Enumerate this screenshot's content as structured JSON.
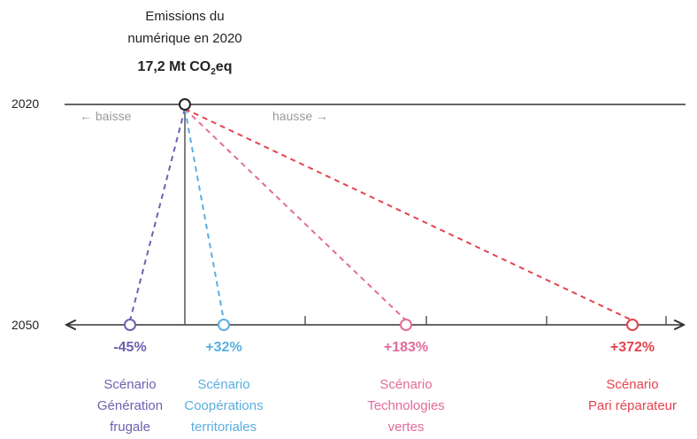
{
  "header": {
    "line1": "Emissions du",
    "line2": "numérique en 2020",
    "value_main": "17,2 Mt CO",
    "value_sub": "2",
    "value_tail": "eq"
  },
  "axes": {
    "year_top": "2020",
    "year_bottom": "2050",
    "down_label": "← baisse",
    "up_label": "hausse →"
  },
  "scenarios": [
    {
      "pct": "-45%",
      "line1": "Scénario",
      "line2": "Génération",
      "line3": "frugale",
      "color": "#6b62b0"
    },
    {
      "pct": "+32%",
      "line1": "Scénario",
      "line2": "Coopérations",
      "line3": "territoriales",
      "color": "#5aaee0"
    },
    {
      "pct": "+183%",
      "line1": "Scénario",
      "line2": "Technologies",
      "line3": "vertes",
      "color": "#e36b9a"
    },
    {
      "pct": "+372%",
      "line1": "Scénario",
      "line2": "Pari réparateur",
      "line3": "",
      "color": "#e4434f"
    }
  ],
  "chart_data": {
    "type": "diagram",
    "baseline_year": 2020,
    "target_year": 2050,
    "baseline_value": "17,2 Mt CO2eq",
    "changes_percent": [
      -45,
      32,
      183,
      372
    ]
  },
  "colors": {
    "axis": "#333333",
    "muted": "#9a9a9a"
  }
}
